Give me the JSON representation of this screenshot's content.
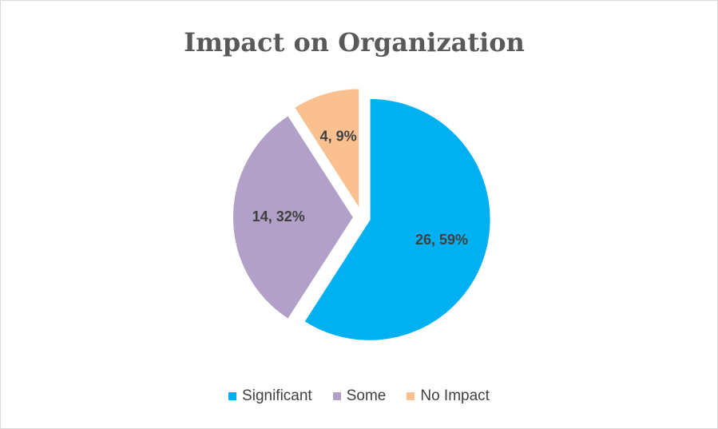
{
  "chart_data": {
    "type": "pie",
    "title": "Impact on Organization",
    "categories": [
      "Significant",
      "Some",
      "No Impact"
    ],
    "values": [
      26,
      14,
      4
    ],
    "percentages": [
      59,
      32,
      9
    ],
    "data_labels": [
      "26, 59%",
      "14, 32%",
      "4, 9%"
    ],
    "colors": [
      "#00b0f0",
      "#b1a0c7",
      "#fac090"
    ],
    "exploded": true,
    "legend": {
      "position": "bottom",
      "entries": [
        "Significant",
        "Some",
        "No Impact"
      ]
    }
  }
}
